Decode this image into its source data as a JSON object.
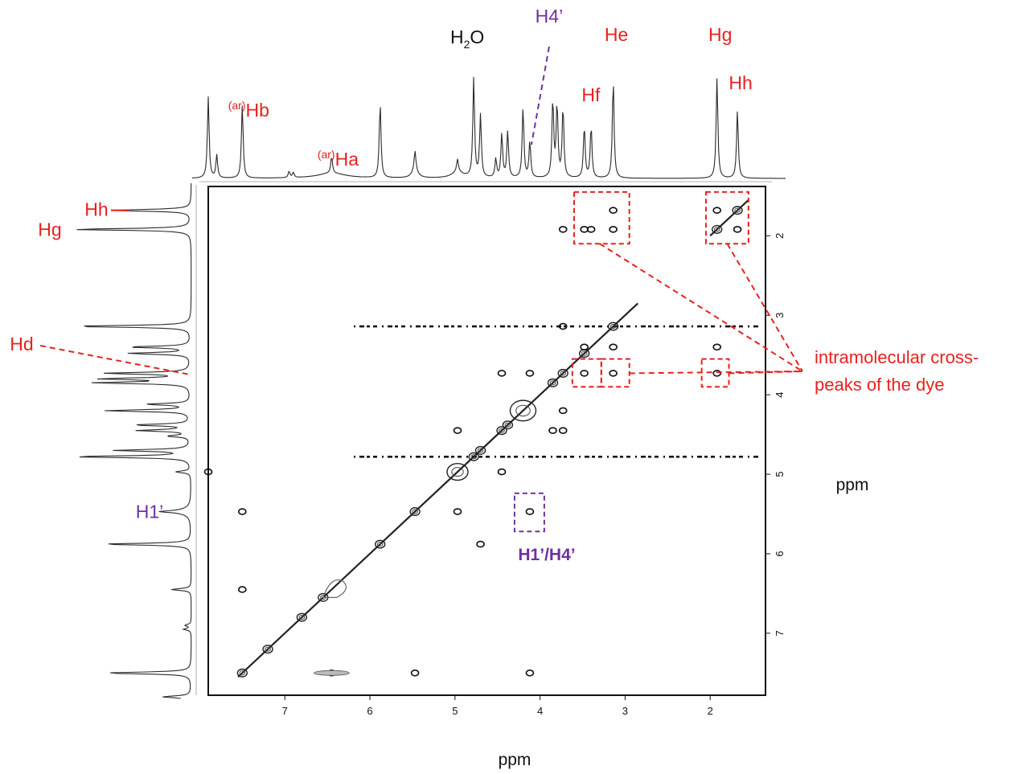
{
  "chart_data": {
    "type": "scatter",
    "subtype": "2D NMR correlation spectrum with 1D projections",
    "xlabel": "ppm",
    "ylabel": "ppm",
    "x_axis": {
      "ticks": [
        "7",
        "6",
        "5",
        "4",
        "3",
        "2"
      ],
      "range": [
        7.9,
        1.35
      ],
      "reversed": true
    },
    "y_axis": {
      "ticks": [
        "2",
        "3",
        "4",
        "5",
        "6",
        "7"
      ],
      "range": [
        1.38,
        7.78
      ],
      "reversed": true
    },
    "colors": {
      "dye": "#e8211f",
      "sugar": "#7030a0",
      "solvent": "#111111",
      "spectrum": "#2a2a2a"
    },
    "peaks": [
      {
        "ppm": 7.9,
        "height": 0.78
      },
      {
        "ppm": 7.8,
        "height": 0.22
      },
      {
        "ppm": 7.5,
        "height": 0.7
      },
      {
        "ppm": 6.95,
        "height": 0.06
      },
      {
        "ppm": 6.9,
        "height": 0.05
      },
      {
        "ppm": 6.45,
        "height": 0.16
      },
      {
        "ppm": 5.88,
        "height": 0.72
      },
      {
        "ppm": 5.47,
        "height": 0.18
      },
      {
        "ppm": 4.97,
        "height": 0.12
      },
      {
        "ppm": 4.78,
        "height": 0.95
      },
      {
        "ppm": 4.7,
        "height": 0.6
      },
      {
        "ppm": 4.52,
        "height": 0.18
      },
      {
        "ppm": 4.45,
        "height": 0.42
      },
      {
        "ppm": 4.38,
        "height": 0.45
      },
      {
        "ppm": 4.2,
        "height": 0.68
      },
      {
        "ppm": 4.12,
        "height": 0.35
      },
      {
        "ppm": 3.85,
        "height": 0.75
      },
      {
        "ppm": 3.8,
        "height": 0.7
      },
      {
        "ppm": 3.73,
        "height": 0.68
      },
      {
        "ppm": 3.48,
        "height": 0.5
      },
      {
        "ppm": 3.4,
        "height": 0.5
      },
      {
        "ppm": 3.14,
        "height": 0.95
      },
      {
        "ppm": 1.92,
        "height": 0.96
      },
      {
        "ppm": 1.68,
        "height": 0.65
      }
    ],
    "peak_labels": [
      {
        "pre": "",
        "text": "H",
        "sub": "2",
        "post": "O",
        "ppm": 4.78,
        "color_key": "solvent"
      },
      {
        "pre": "",
        "text": "H4’",
        "sub": "",
        "post": "",
        "ppm": 4.12,
        "color_key": "sugar"
      },
      {
        "pre": "",
        "text": "He",
        "sub": "",
        "post": "",
        "ppm": 3.14,
        "color_key": "dye"
      },
      {
        "pre": "",
        "text": "Hf",
        "sub": "",
        "post": "",
        "ppm": 3.44,
        "color_key": "dye"
      },
      {
        "pre": "",
        "text": "Hg",
        "sub": "",
        "post": "",
        "ppm": 1.92,
        "color_key": "dye"
      },
      {
        "pre": "",
        "text": "Hh",
        "sub": "",
        "post": "",
        "ppm": 1.68,
        "color_key": "dye"
      },
      {
        "pre": "(ar)",
        "text": "Hb",
        "sub": "",
        "post": "",
        "ppm": 7.5,
        "color_key": "dye"
      },
      {
        "pre": "(ar)",
        "text": "Ha",
        "sub": "",
        "post": "",
        "ppm": 6.45,
        "color_key": "dye"
      }
    ],
    "side_labels": [
      {
        "text": "Hh",
        "ppm": 1.68,
        "color_key": "dye"
      },
      {
        "text": "Hg",
        "ppm": 1.92,
        "color_key": "dye"
      },
      {
        "text": "Hd",
        "ppm": 3.73,
        "color_key": "dye"
      },
      {
        "text": "H1’",
        "ppm": 5.47,
        "color_key": "sugar"
      }
    ],
    "diagonal": [
      [
        7.5,
        7.5
      ],
      [
        7.2,
        7.2
      ],
      [
        6.8,
        6.8
      ],
      [
        6.55,
        6.55
      ],
      [
        5.88,
        5.88
      ],
      [
        5.47,
        5.47
      ],
      [
        4.97,
        4.97
      ],
      [
        4.78,
        4.78
      ],
      [
        4.7,
        4.7
      ],
      [
        4.45,
        4.45
      ],
      [
        4.38,
        4.38
      ],
      [
        4.2,
        4.2
      ],
      [
        3.85,
        3.85
      ],
      [
        3.73,
        3.73
      ],
      [
        3.48,
        3.48
      ],
      [
        3.14,
        3.14
      ],
      [
        1.92,
        1.92
      ],
      [
        1.68,
        1.68
      ]
    ],
    "cross_peaks": [
      {
        "x": 3.14,
        "y": 1.68
      },
      {
        "x": 3.14,
        "y": 1.92
      },
      {
        "x": 3.4,
        "y": 1.92
      },
      {
        "x": 3.48,
        "y": 1.92
      },
      {
        "x": 3.73,
        "y": 1.92
      },
      {
        "x": 1.68,
        "y": 1.92
      },
      {
        "x": 1.92,
        "y": 1.68
      },
      {
        "x": 3.73,
        "y": 3.14
      },
      {
        "x": 3.48,
        "y": 3.4
      },
      {
        "x": 3.14,
        "y": 3.4
      },
      {
        "x": 1.92,
        "y": 3.4
      },
      {
        "x": 1.92,
        "y": 3.73
      },
      {
        "x": 3.14,
        "y": 3.73
      },
      {
        "x": 3.48,
        "y": 3.73
      },
      {
        "x": 4.45,
        "y": 3.73
      },
      {
        "x": 4.12,
        "y": 3.73
      },
      {
        "x": 3.73,
        "y": 4.2
      },
      {
        "x": 4.97,
        "y": 4.45
      },
      {
        "x": 3.85,
        "y": 4.45
      },
      {
        "x": 3.73,
        "y": 4.45
      },
      {
        "x": 4.12,
        "y": 5.47
      },
      {
        "x": 4.97,
        "y": 5.47
      },
      {
        "x": 7.5,
        "y": 5.47
      },
      {
        "x": 4.7,
        "y": 5.88
      },
      {
        "x": 7.5,
        "y": 6.45
      },
      {
        "x": 6.45,
        "y": 7.5
      },
      {
        "x": 5.47,
        "y": 7.5
      },
      {
        "x": 4.12,
        "y": 7.5
      },
      {
        "x": 7.9,
        "y": 4.97
      },
      {
        "x": 4.45,
        "y": 4.97
      }
    ],
    "t1_noise_rows": [
      3.14,
      4.78
    ],
    "highlight_boxes": [
      {
        "x": [
          3.6,
          2.95
        ],
        "y": [
          1.45,
          2.1
        ],
        "color_key": "dye"
      },
      {
        "x": [
          2.05,
          1.55
        ],
        "y": [
          1.45,
          2.1
        ],
        "color_key": "dye"
      },
      {
        "x": [
          3.62,
          3.28
        ],
        "y": [
          3.55,
          3.9
        ],
        "color_key": "dye"
      },
      {
        "x": [
          3.28,
          2.95
        ],
        "y": [
          3.55,
          3.9
        ],
        "color_key": "dye"
      },
      {
        "x": [
          2.1,
          1.78
        ],
        "y": [
          3.55,
          3.9
        ],
        "color_key": "dye"
      },
      {
        "x": [
          4.3,
          3.95
        ],
        "y": [
          5.24,
          5.72
        ],
        "color_key": "sugar"
      }
    ],
    "annotations": [
      {
        "text_lines": [
          "intramolecular cross-",
          "peaks of the dye"
        ],
        "color_key": "dye"
      },
      {
        "text_lines": [
          "H1’/H4’"
        ],
        "color_key": "sugar"
      }
    ]
  }
}
